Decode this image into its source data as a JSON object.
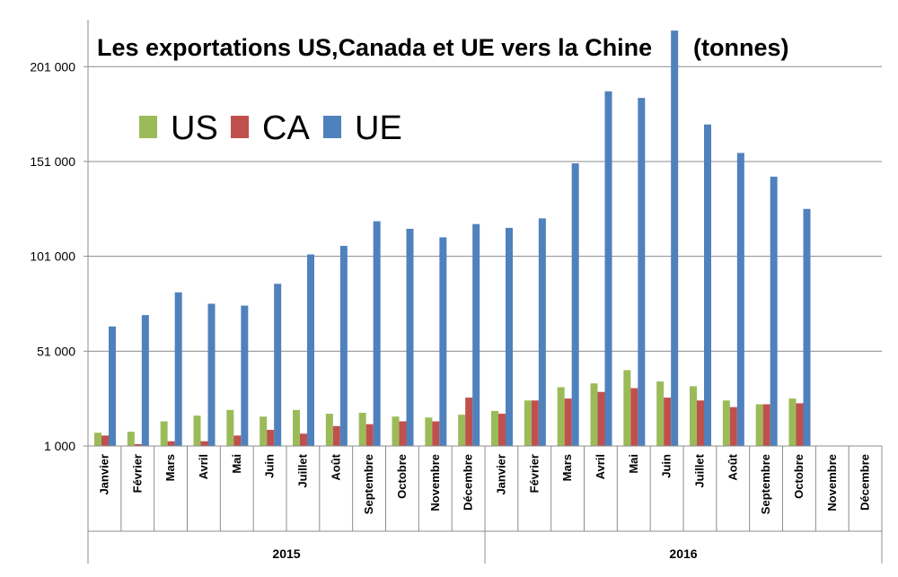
{
  "chart_data": {
    "type": "bar",
    "title": "Les exportations US,Canada et UE vers la Chine",
    "unit_label": "(tonnes)",
    "ylim": [
      1000,
      221000
    ],
    "yticks": [
      1000,
      51000,
      101000,
      151000,
      201000
    ],
    "ytick_labels": [
      "1 000",
      "51 000",
      "101 000",
      "151 000",
      "201 000"
    ],
    "grid": true,
    "legend_position": "top-left",
    "years": [
      {
        "label": "2015",
        "months": 12
      },
      {
        "label": "2016",
        "months": 12
      }
    ],
    "categories": [
      "Janvier",
      "Février",
      "Mars",
      "Avril",
      "Mai",
      "Juin",
      "Juillet",
      "Août",
      "Septembre",
      "Octobre",
      "Novembre",
      "Décembre",
      "Janvier",
      "Février",
      "Mars",
      "Avril",
      "Mai",
      "Juin",
      "Juillet",
      "Août",
      "Septembre",
      "Octobre",
      "Novembre",
      "Décembre"
    ],
    "series": [
      {
        "name": "US",
        "color": "#9bbb59",
        "values": [
          8000,
          8500,
          14000,
          17000,
          20000,
          16500,
          20000,
          18000,
          18500,
          16500,
          16000,
          17500,
          19500,
          25000,
          32000,
          34000,
          41000,
          35000,
          32500,
          25000,
          23000,
          26000,
          null,
          null
        ]
      },
      {
        "name": "CA",
        "color": "#c0504d",
        "values": [
          6500,
          2000,
          3500,
          3500,
          6500,
          9500,
          7500,
          11500,
          12500,
          14000,
          14000,
          26500,
          18000,
          25000,
          26000,
          29500,
          31500,
          26500,
          25000,
          21500,
          23000,
          23500,
          null,
          null
        ]
      },
      {
        "name": "UE",
        "color": "#4f81bd",
        "values": [
          64000,
          70000,
          82000,
          76000,
          75000,
          86500,
          102000,
          106500,
          119500,
          115500,
          111000,
          118000,
          116000,
          121000,
          150000,
          188000,
          184500,
          220000,
          170500,
          155500,
          143000,
          126000,
          null,
          null
        ]
      }
    ]
  }
}
